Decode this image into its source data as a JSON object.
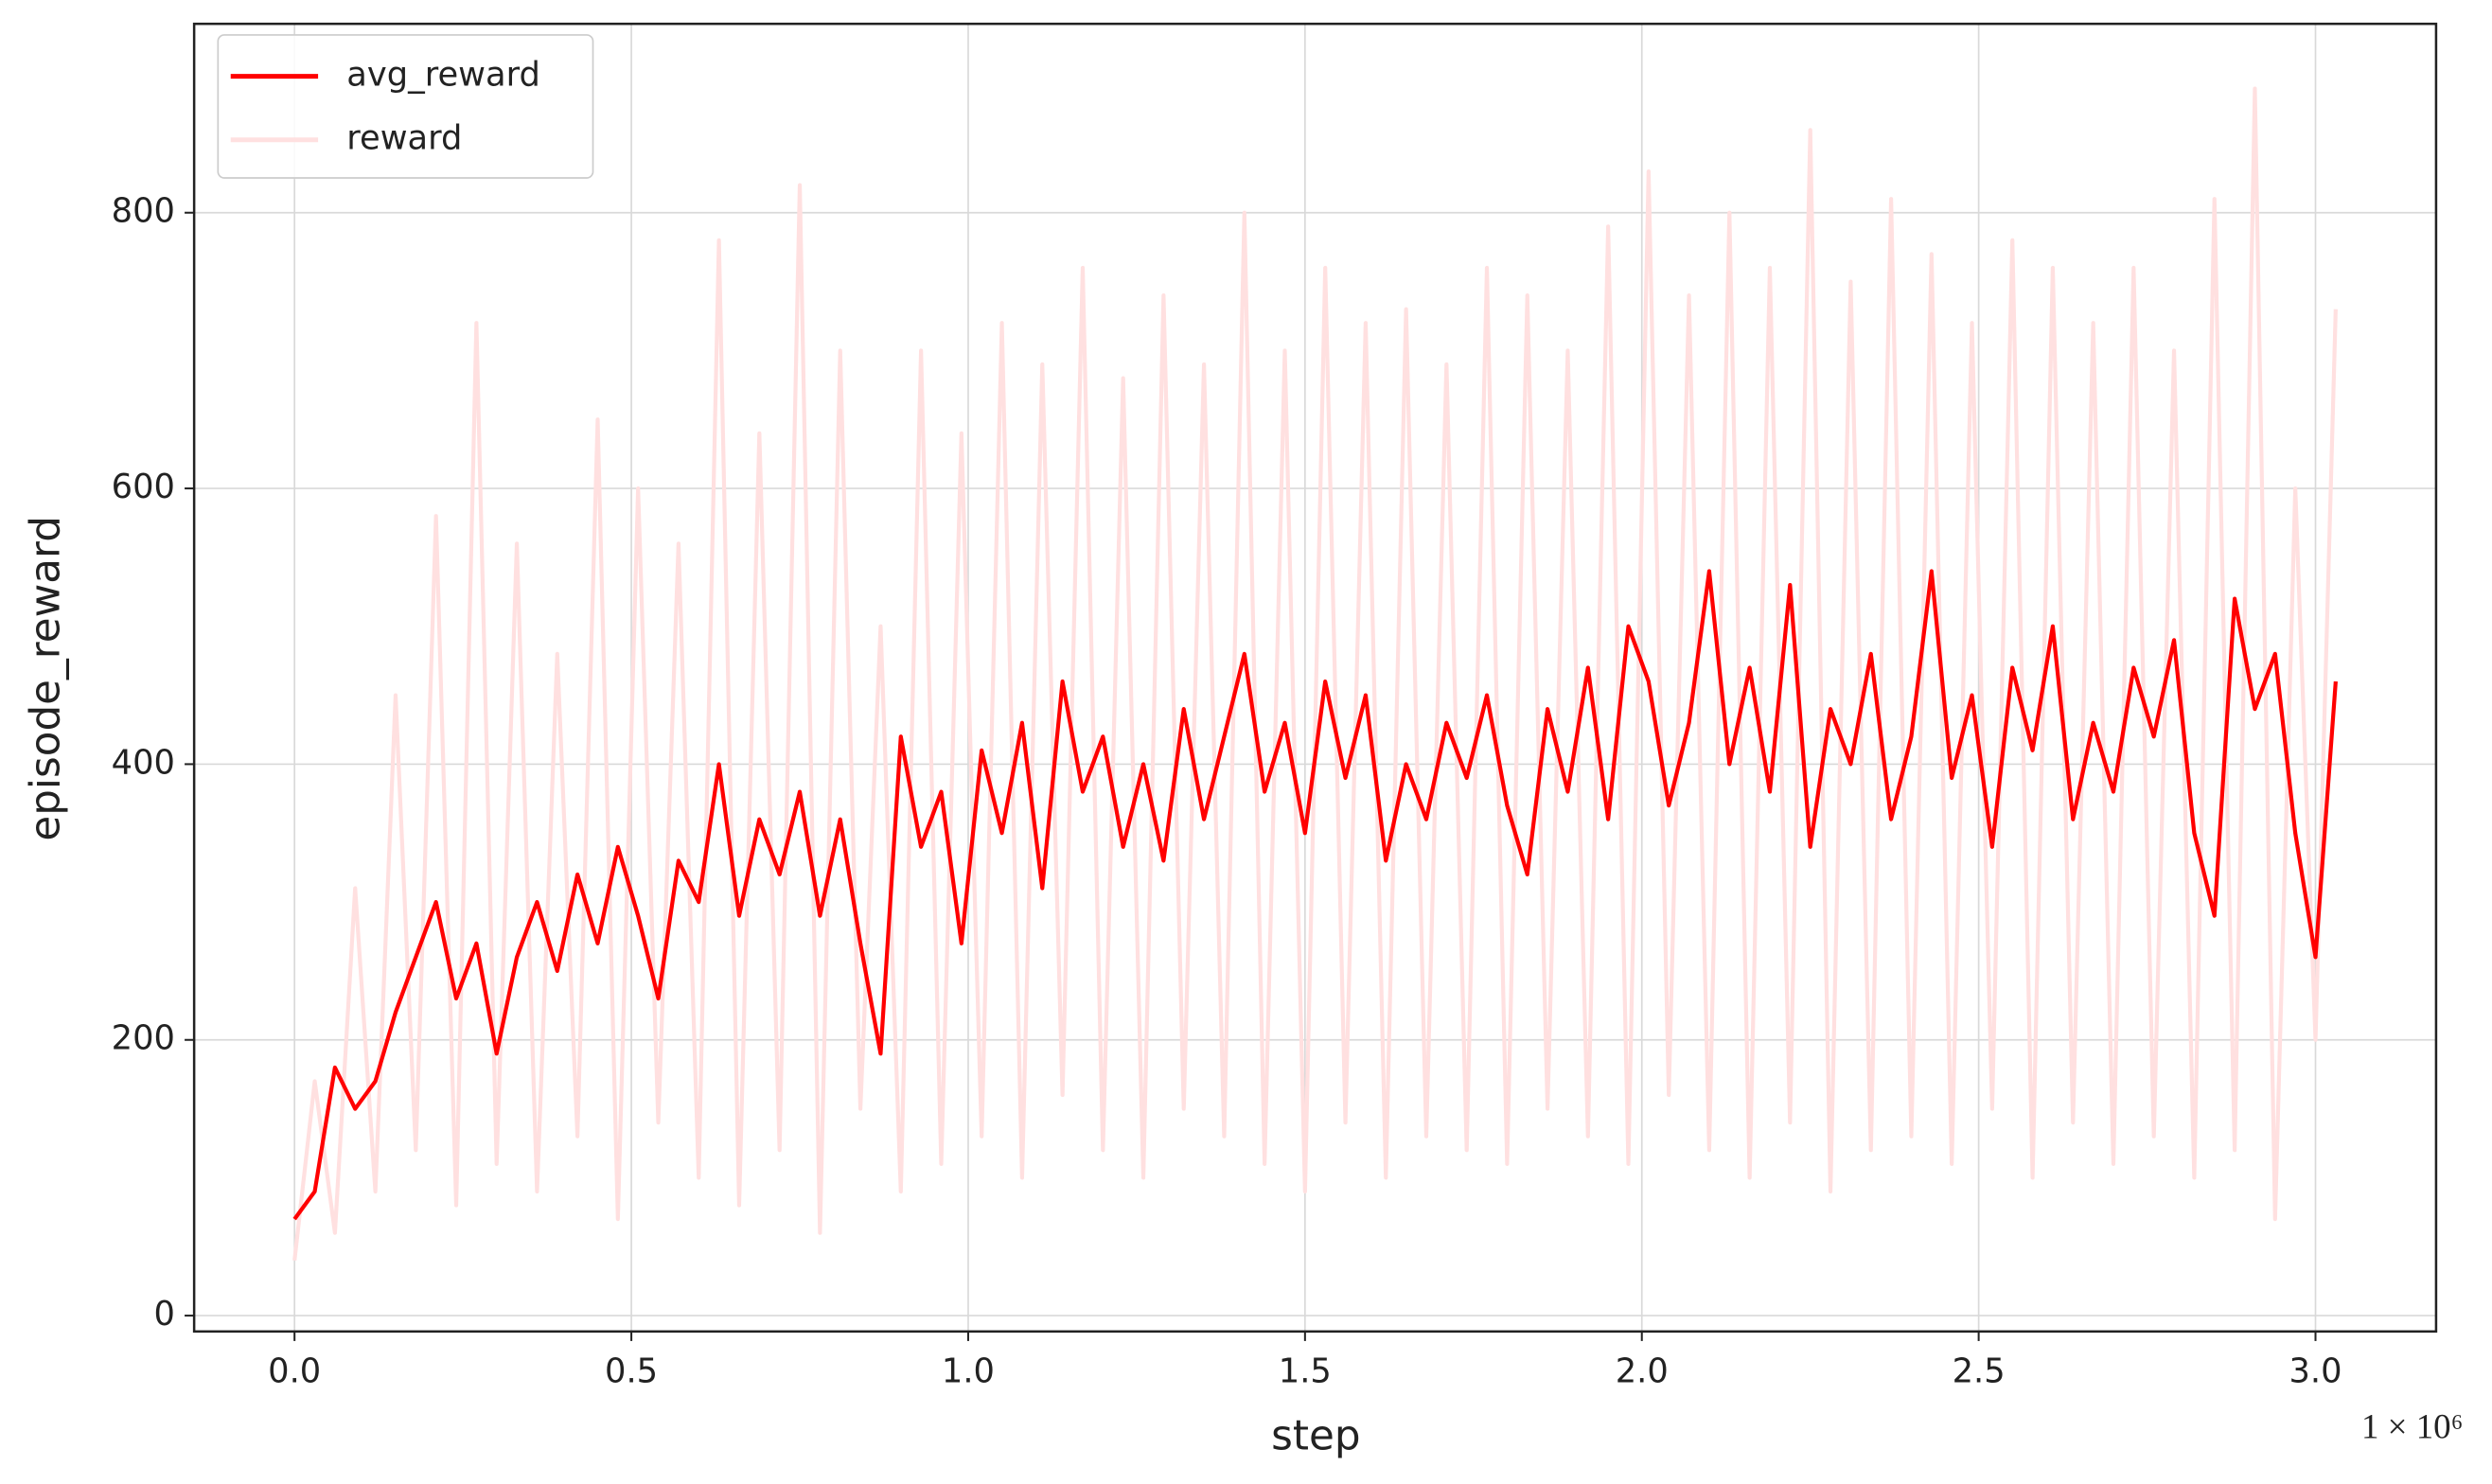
{
  "chart_data": {
    "type": "line",
    "xlabel": "step",
    "ylabel": "episode_reward",
    "x_offset_label": "1 × 10⁶",
    "x": [
      0,
      0.03,
      0.06,
      0.09,
      0.12,
      0.15,
      0.18,
      0.21,
      0.24,
      0.27,
      0.3,
      0.33,
      0.36,
      0.39,
      0.42,
      0.45,
      0.48,
      0.51,
      0.54,
      0.57,
      0.6,
      0.63,
      0.66,
      0.69,
      0.72,
      0.75,
      0.78,
      0.81,
      0.84,
      0.87,
      0.9,
      0.93,
      0.96,
      0.99,
      1.02,
      1.05,
      1.08,
      1.11,
      1.14,
      1.17,
      1.2,
      1.23,
      1.26,
      1.29,
      1.32,
      1.35,
      1.38,
      1.41,
      1.44,
      1.47,
      1.5,
      1.53,
      1.56,
      1.59,
      1.62,
      1.65,
      1.68,
      1.71,
      1.74,
      1.77,
      1.8,
      1.83,
      1.86,
      1.89,
      1.92,
      1.95,
      1.98,
      2.01,
      2.04,
      2.07,
      2.1,
      2.13,
      2.16,
      2.19,
      2.22,
      2.25,
      2.28,
      2.31,
      2.34,
      2.37,
      2.4,
      2.43,
      2.46,
      2.49,
      2.52,
      2.55,
      2.58,
      2.61,
      2.64,
      2.67,
      2.7,
      2.73,
      2.76,
      2.79,
      2.82,
      2.85,
      2.88,
      2.91,
      2.94,
      2.97,
      3.0,
      3.03
    ],
    "series": [
      {
        "name": "avg_reward",
        "color": "#ff0000",
        "values": [
          70,
          90,
          180,
          150,
          170,
          220,
          260,
          300,
          230,
          270,
          190,
          260,
          300,
          250,
          320,
          270,
          340,
          290,
          230,
          330,
          300,
          400,
          290,
          360,
          320,
          380,
          290,
          360,
          270,
          190,
          420,
          340,
          380,
          270,
          410,
          350,
          430,
          310,
          460,
          380,
          420,
          340,
          400,
          330,
          440,
          360,
          420,
          480,
          380,
          430,
          350,
          460,
          390,
          450,
          330,
          400,
          360,
          430,
          390,
          450,
          370,
          320,
          440,
          380,
          470,
          360,
          500,
          460,
          370,
          430,
          540,
          400,
          470,
          380,
          530,
          340,
          440,
          400,
          480,
          360,
          420,
          540,
          390,
          450,
          340,
          470,
          410,
          500,
          360,
          430,
          380,
          470,
          420,
          490,
          350,
          290,
          520,
          440,
          480,
          350,
          260,
          460
        ]
      },
      {
        "name": "reward",
        "color": "#ffe0e0",
        "values": [
          40,
          170,
          60,
          310,
          90,
          450,
          120,
          580,
          80,
          720,
          110,
          560,
          90,
          480,
          130,
          650,
          70,
          600,
          140,
          560,
          100,
          780,
          80,
          640,
          120,
          820,
          60,
          700,
          150,
          500,
          90,
          700,
          110,
          640,
          130,
          720,
          100,
          690,
          160,
          760,
          120,
          680,
          100,
          740,
          150,
          690,
          130,
          800,
          110,
          700,
          90,
          760,
          140,
          720,
          100,
          730,
          130,
          690,
          120,
          760,
          110,
          740,
          150,
          700,
          130,
          790,
          110,
          830,
          160,
          740,
          120,
          800,
          100,
          760,
          140,
          860,
          90,
          750,
          120,
          810,
          130,
          770,
          110,
          720,
          150,
          780,
          100,
          760,
          140,
          720,
          110,
          760,
          130,
          700,
          100,
          810,
          120,
          890,
          70,
          600,
          200,
          730
        ]
      }
    ],
    "xlim": [
      -0.149,
      3.179
    ],
    "ylim": [
      -11.5,
      937
    ],
    "xticks": [
      {
        "value": 0,
        "label": "0.0"
      },
      0.5,
      {
        "value": 1,
        "label": "1.0"
      },
      1.5,
      {
        "value": 2,
        "label": "2.0"
      },
      2.5,
      {
        "value": 3,
        "label": "3.0"
      }
    ],
    "yticks": [
      0,
      200,
      400,
      600,
      800
    ],
    "grid": true,
    "legend": "upper left"
  }
}
